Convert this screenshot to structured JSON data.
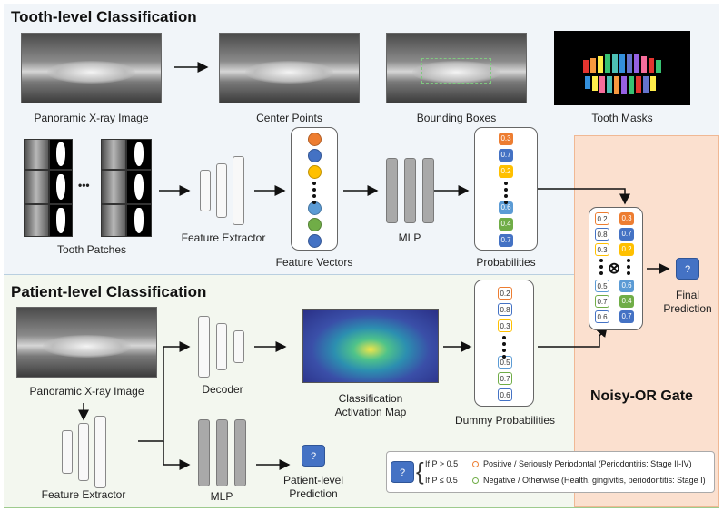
{
  "sections": {
    "tooth_title": "Tooth-level Classification",
    "patient_title": "Patient-level Classification",
    "gate_title": "Noisy-OR Gate"
  },
  "tooth": {
    "panoramic_label": "Panoramic X-ray Image",
    "center_points_label": "Center Points",
    "bounding_boxes_label": "Bounding Boxes",
    "tooth_masks_label": "Tooth Masks",
    "tooth_patches_label": "Tooth Patches",
    "feature_extractor_label": "Feature Extractor",
    "feature_vectors_label": "Feature Vectors",
    "mlp_label": "MLP",
    "probabilities_label": "Probabilities",
    "patch_ellipsis": "•••",
    "probabilities": [
      "0.3",
      "0.7",
      "0.2",
      "0.6",
      "0.4",
      "0.7"
    ],
    "feature_colors": [
      "#ed7d31",
      "#4472c4",
      "#ffc000",
      "#5b9bd5",
      "#70ad47",
      "#4472c4"
    ],
    "prob_colors": [
      "#ed7d31",
      "#4472c4",
      "#ffc000",
      "#5b9bd5",
      "#70ad47",
      "#4472c4"
    ]
  },
  "patient": {
    "panoramic_label": "Panoramic X-ray Image",
    "feature_extractor_label": "Feature Extractor",
    "decoder_label": "Decoder",
    "mlp_label": "MLP",
    "cam_label_line1": "Classification",
    "cam_label_line2": "Activation Map",
    "dummy_label": "Dummy Probabilities",
    "prediction_line1": "Patient-level",
    "prediction_line2": "Prediction",
    "prediction_symbol": "?",
    "dummy_probabilities": [
      "0.2",
      "0.8",
      "0.3",
      "0.5",
      "0.7",
      "0.6"
    ],
    "dummy_colors": [
      "#ed7d31",
      "#4472c4",
      "#ffc000",
      "#5b9bd5",
      "#70ad47",
      "#4472c4"
    ]
  },
  "gate": {
    "left_column": [
      "0.2",
      "0.8",
      "0.3",
      "0.5",
      "0.7",
      "0.6"
    ],
    "right_column": [
      "0.3",
      "0.7",
      "0.2",
      "0.6",
      "0.4",
      "0.7"
    ],
    "operator": "⊗",
    "final_line1": "Final",
    "final_line2": "Prediction",
    "final_symbol": "?"
  },
  "legend": {
    "symbol": "?",
    "cond_positive": "If P > 0.5",
    "cond_negative": "If P ≤ 0.5",
    "positive_text": "Positive / Seriously Periodontal (Periodontitis: Stage II-IV)",
    "negative_text": "Negative / Otherwise (Health, gingivitis, periodontitis: Stage I)",
    "positive_color": "#ed7d31",
    "negative_color": "#70ad47"
  }
}
